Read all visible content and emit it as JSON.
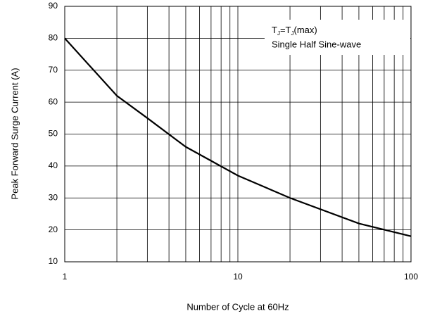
{
  "chart_data": {
    "type": "line",
    "xlabel": "Number of Cycle at 60Hz",
    "ylabel": "Peak Forward Surge Current (A)",
    "annotation": [
      "T",
      "J",
      "=T",
      "J",
      "(max)"
    ],
    "annotation2": "Single Half Sine-wave",
    "x": [
      1,
      2,
      3,
      5,
      10,
      20,
      50,
      100
    ],
    "series": [
      {
        "color": "#000000",
        "values": [
          80,
          62,
          55,
          46,
          37,
          30,
          22,
          18
        ]
      }
    ],
    "xlim": [
      1,
      100
    ],
    "xticks": [
      1,
      10,
      100
    ],
    "xscale": "log",
    "xgrid": [
      2,
      3,
      4,
      5,
      6,
      7,
      8,
      9,
      20,
      30,
      40,
      50,
      60,
      70,
      80,
      90
    ],
    "ylim": [
      10,
      90
    ],
    "yticks": [
      10,
      20,
      30,
      40,
      50,
      60,
      70,
      80,
      90
    ],
    "grid": true
  }
}
